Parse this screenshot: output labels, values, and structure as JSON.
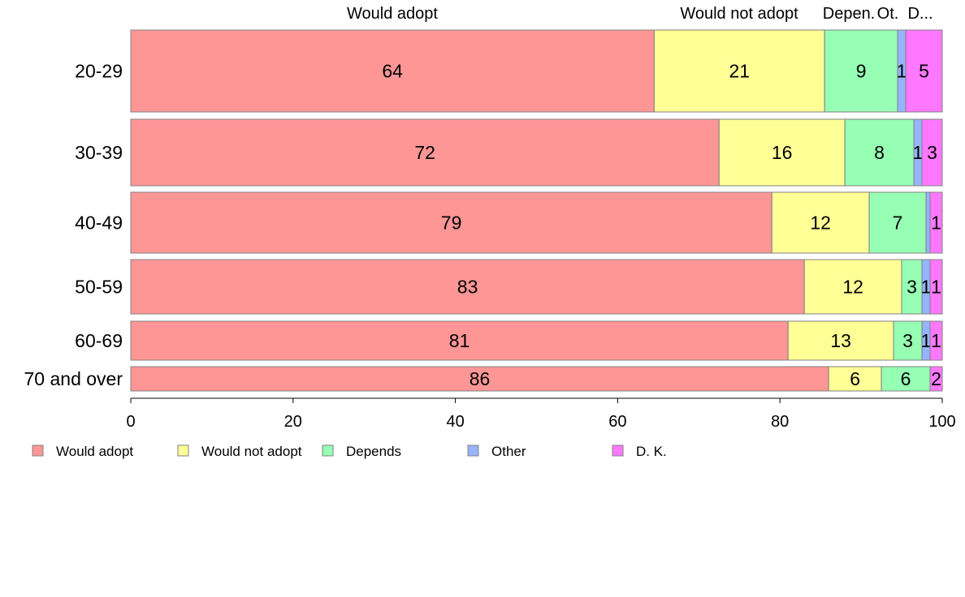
{
  "chart_data": {
    "type": "bar",
    "orientation": "horizontal",
    "stacked": true,
    "normalized": true,
    "categories": [
      "20-29",
      "30-39",
      "40-49",
      "50-59",
      "60-69",
      "70 and over"
    ],
    "series": [
      {
        "name": "Would adopt",
        "color": "#ff9696",
        "values": [
          64.5,
          72.5,
          79,
          83,
          81,
          86
        ]
      },
      {
        "name": "Would not adopt",
        "color": "#ffff96",
        "values": [
          21,
          15.5,
          12,
          12,
          13,
          6.5
        ]
      },
      {
        "name": "Depends",
        "color": "#96ffb4",
        "values": [
          9,
          8.5,
          7,
          2.5,
          3.5,
          6
        ]
      },
      {
        "name": "Other",
        "color": "#96b4ff",
        "values": [
          1,
          1,
          0.5,
          1,
          1,
          0
        ]
      },
      {
        "name": "D. K.",
        "color": "#ff78ff",
        "values": [
          4.5,
          2.5,
          1.5,
          1.5,
          1.5,
          1.5
        ]
      }
    ],
    "data_labels": [
      [
        "64",
        "21",
        "9",
        "1",
        "5"
      ],
      [
        "72",
        "16",
        "8",
        "1",
        "3"
      ],
      [
        "79",
        "12",
        "7",
        "",
        "1"
      ],
      [
        "83",
        "12",
        "3",
        "1",
        "1"
      ],
      [
        "81",
        "13",
        "3",
        "1",
        "1"
      ],
      [
        "86",
        "6",
        "6",
        "",
        "2"
      ]
    ],
    "top_labels": [
      "Would adopt",
      "Would not adopt",
      "Depen.",
      "Ot.",
      "D..."
    ],
    "x_ticks": [
      "0",
      "20",
      "40",
      "60",
      "80",
      "100"
    ],
    "xlim": [
      0,
      100
    ],
    "legend_position": "bottom-left",
    "grid": false
  }
}
